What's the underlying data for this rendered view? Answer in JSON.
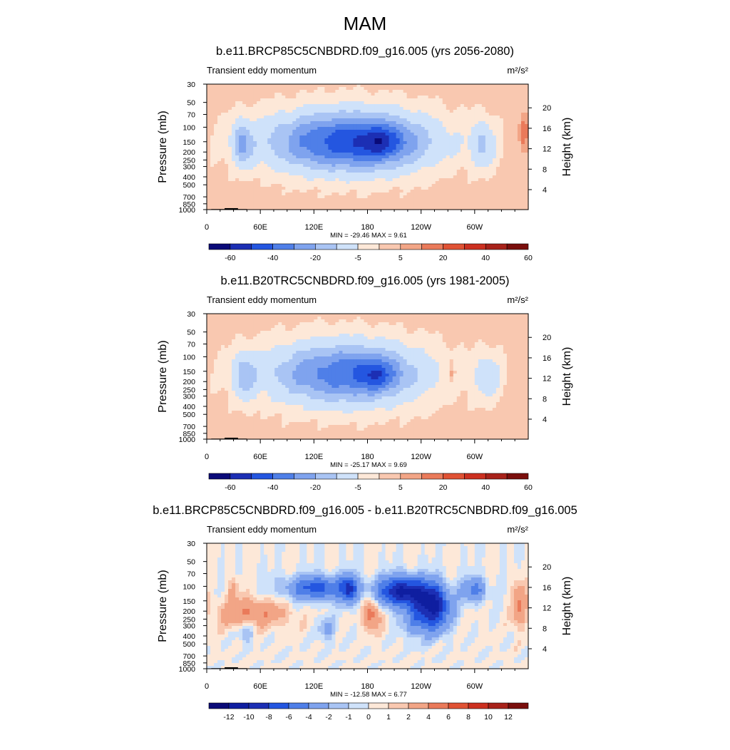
{
  "figure": {
    "title": "MAM"
  },
  "chart_data": [
    {
      "type": "heatmap",
      "title": "b.e11.BRCP85C5CNBDRD.f09_g16.005 (yrs 2056-2080)",
      "subtitle": "Transient eddy momentum",
      "units": "m²/s²",
      "xlabel": "",
      "ylabel": "Pressure (mb)",
      "ylabel_right": "Height (km)",
      "x_ticks": [
        "0",
        "60E",
        "120E",
        "180",
        "120W",
        "60W"
      ],
      "x_tick_values": [
        0,
        60,
        120,
        180,
        240,
        300
      ],
      "xlim": [
        0,
        360
      ],
      "y_ticks": [
        "30",
        "50",
        "70",
        "100",
        "150",
        "200",
        "250",
        "300",
        "400",
        "500",
        "700",
        "850",
        "1000"
      ],
      "y_tick_values": [
        30,
        50,
        70,
        100,
        150,
        200,
        250,
        300,
        400,
        500,
        700,
        850,
        1000
      ],
      "ylim": [
        1000,
        30
      ],
      "right_ticks": [
        "4",
        "8",
        "12",
        "16",
        "20"
      ],
      "min_max": "MIN = -29.46  MAX =   9.61",
      "colorbar_labels": [
        "-60",
        "-40",
        "-20",
        "-5",
        "5",
        "20",
        "40",
        "60"
      ],
      "colorbar_colors": [
        "#0a0a78",
        "#1c2fb4",
        "#2456e0",
        "#4f7fe8",
        "#7fa3ee",
        "#a9c4f4",
        "#cfe2fa",
        "#fde8d8",
        "#f9c8b0",
        "#f2a586",
        "#ea7a5a",
        "#e05234",
        "#cc3020",
        "#a8221a",
        "#7a0e0c"
      ],
      "fields": [
        {
          "lon": 160,
          "p": 150,
          "dlon": 95,
          "dz": 2.5,
          "amp": -24
        },
        {
          "lon": 195,
          "p": 150,
          "dlon": 25,
          "dz": 1.3,
          "amp": -8
        },
        {
          "lon": 40,
          "p": 160,
          "dlon": 11,
          "dz": 1.8,
          "amp": -11
        },
        {
          "lon": 310,
          "p": 165,
          "dlon": 14,
          "dz": 2.0,
          "amp": -9
        },
        {
          "lon": 355,
          "p": 115,
          "dlon": 5,
          "dz": 1.4,
          "amp": 7
        }
      ],
      "background_value": 1.5
    },
    {
      "type": "heatmap",
      "title": "b.e11.B20TRC5CNBDRD.f09_g16.005 (yrs 1981-2005)",
      "subtitle": "Transient eddy momentum",
      "units": "m²/s²",
      "xlabel": "",
      "ylabel": "Pressure (mb)",
      "ylabel_right": "Height (km)",
      "x_ticks": [
        "0",
        "60E",
        "120E",
        "180",
        "120W",
        "60W"
      ],
      "x_tick_values": [
        0,
        60,
        120,
        180,
        240,
        300
      ],
      "xlim": [
        0,
        360
      ],
      "y_ticks": [
        "30",
        "50",
        "70",
        "100",
        "150",
        "200",
        "250",
        "300",
        "400",
        "500",
        "700",
        "850",
        "1000"
      ],
      "y_tick_values": [
        30,
        50,
        70,
        100,
        150,
        200,
        250,
        300,
        400,
        500,
        700,
        850,
        1000
      ],
      "ylim": [
        1000,
        30
      ],
      "right_ticks": [
        "4",
        "8",
        "12",
        "16",
        "20"
      ],
      "min_max": "MIN = -25.17  MAX =   9.69",
      "colorbar_labels": [
        "-60",
        "-40",
        "-20",
        "-5",
        "5",
        "20",
        "40",
        "60"
      ],
      "colorbar_colors": [
        "#0a0a78",
        "#1c2fb4",
        "#2456e0",
        "#4f7fe8",
        "#7fa3ee",
        "#a9c4f4",
        "#cfe2fa",
        "#fde8d8",
        "#f9c8b0",
        "#f2a586",
        "#ea7a5a",
        "#e05234",
        "#cc3020",
        "#a8221a",
        "#7a0e0c"
      ],
      "fields": [
        {
          "lon": 155,
          "p": 160,
          "dlon": 90,
          "dz": 2.6,
          "amp": -20
        },
        {
          "lon": 190,
          "p": 165,
          "dlon": 22,
          "dz": 1.2,
          "amp": -9
        },
        {
          "lon": 42,
          "p": 170,
          "dlon": 13,
          "dz": 1.9,
          "amp": -9
        },
        {
          "lon": 315,
          "p": 175,
          "dlon": 16,
          "dz": 2.0,
          "amp": -8
        },
        {
          "lon": 275,
          "p": 160,
          "dlon": 3,
          "dz": 0.8,
          "amp": 6
        }
      ],
      "background_value": 1.5
    },
    {
      "type": "heatmap",
      "title": "b.e11.BRCP85C5CNBDRD.f09_g16.005 - b.e11.B20TRC5CNBDRD.f09_g16.005",
      "subtitle": "Transient eddy momentum",
      "units": "m²/s²",
      "xlabel": "",
      "ylabel": "Pressure (mb)",
      "ylabel_right": "Height (km)",
      "x_ticks": [
        "0",
        "60E",
        "120E",
        "180",
        "120W",
        "60W"
      ],
      "x_tick_values": [
        0,
        60,
        120,
        180,
        240,
        300
      ],
      "xlim": [
        0,
        360
      ],
      "y_ticks": [
        "30",
        "50",
        "70",
        "100",
        "150",
        "200",
        "250",
        "300",
        "400",
        "500",
        "700",
        "850",
        "1000"
      ],
      "y_tick_values": [
        30,
        50,
        70,
        100,
        150,
        200,
        250,
        300,
        400,
        500,
        700,
        850,
        1000
      ],
      "ylim": [
        1000,
        30
      ],
      "right_ticks": [
        "4",
        "8",
        "12",
        "16",
        "20"
      ],
      "min_max": "MIN = -12.58  MAX =   6.77",
      "colorbar_labels": [
        "-12",
        "-10",
        "-8",
        "-6",
        "-4",
        "-2",
        "-1",
        "0",
        "1",
        "2",
        "4",
        "6",
        "8",
        "10",
        "12"
      ],
      "colorbar_colors": [
        "#0a0a78",
        "#0f1ea0",
        "#1c2fb4",
        "#2456e0",
        "#4f7fe8",
        "#7fa3ee",
        "#a9c4f4",
        "#cfe2fa",
        "#fde8d8",
        "#f9c8b0",
        "#f2a586",
        "#ea7a5a",
        "#e05234",
        "#cc3020",
        "#a8221a",
        "#7a0e0c"
      ],
      "fields": [
        {
          "lon": 125,
          "p": 105,
          "dlon": 38,
          "dz": 1.0,
          "amp": -7
        },
        {
          "lon": 160,
          "p": 110,
          "dlon": 9,
          "dz": 1.2,
          "amp": -6
        },
        {
          "lon": 220,
          "p": 115,
          "dlon": 28,
          "dz": 1.2,
          "amp": -11
        },
        {
          "lon": 255,
          "p": 170,
          "dlon": 18,
          "dz": 1.7,
          "amp": -9
        },
        {
          "lon": 300,
          "p": 110,
          "dlon": 14,
          "dz": 1.0,
          "amp": -5
        },
        {
          "lon": 50,
          "p": 210,
          "dlon": 40,
          "dz": 1.1,
          "amp": 4
        },
        {
          "lon": 185,
          "p": 220,
          "dlon": 10,
          "dz": 1.2,
          "amp": 5
        },
        {
          "lon": 240,
          "p": 250,
          "dlon": 22,
          "dz": 1.5,
          "amp": -4
        },
        {
          "lon": 350,
          "p": 170,
          "dlon": 8,
          "dz": 1.8,
          "amp": 4
        },
        {
          "lon": 30,
          "p": 110,
          "dlon": 6,
          "dz": 0.9,
          "amp": 2.5
        },
        {
          "lon": 135,
          "p": 330,
          "dlon": 10,
          "dz": 1.0,
          "amp": -2.5
        },
        {
          "lon": 45,
          "p": 360,
          "dlon": 8,
          "dz": 1.0,
          "amp": -2.5
        }
      ],
      "background_value": 0.2
    }
  ]
}
